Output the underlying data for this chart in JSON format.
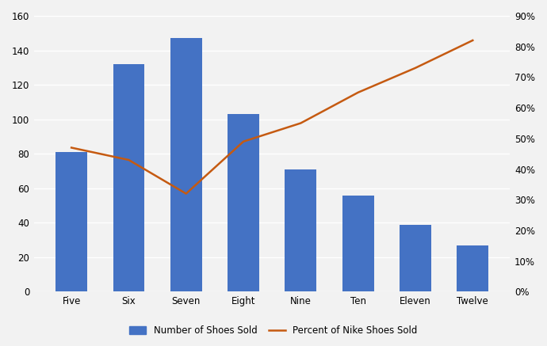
{
  "categories": [
    "Five",
    "Six",
    "Seven",
    "Eight",
    "Nine",
    "Ten",
    "Eleven",
    "Twelve"
  ],
  "bar_values": [
    81,
    132,
    147,
    103,
    71,
    56,
    39,
    27
  ],
  "line_values": [
    0.47,
    0.43,
    0.32,
    0.49,
    0.55,
    0.65,
    0.73,
    0.82
  ],
  "bar_color": "#4472C4",
  "line_color": "#C55A11",
  "left_ylim": [
    0,
    160
  ],
  "left_yticks": [
    0,
    20,
    40,
    60,
    80,
    100,
    120,
    140,
    160
  ],
  "right_ylim": [
    0,
    0.9
  ],
  "right_yticks": [
    0.0,
    0.1,
    0.2,
    0.3,
    0.4,
    0.5,
    0.6,
    0.7,
    0.8,
    0.9
  ],
  "right_yticklabels": [
    "0%",
    "10%",
    "20%",
    "30%",
    "40%",
    "50%",
    "60%",
    "70%",
    "80%",
    "90%"
  ],
  "legend_bar_label": "Number of Shoes Sold",
  "legend_line_label": "Percent of Nike Shoes Sold",
  "fig_bg_color": "#f2f2f2",
  "plot_bg_color": "#f2f2f2",
  "grid_color": "#ffffff",
  "bar_width": 0.55,
  "line_width": 1.8,
  "tick_fontsize": 8.5
}
